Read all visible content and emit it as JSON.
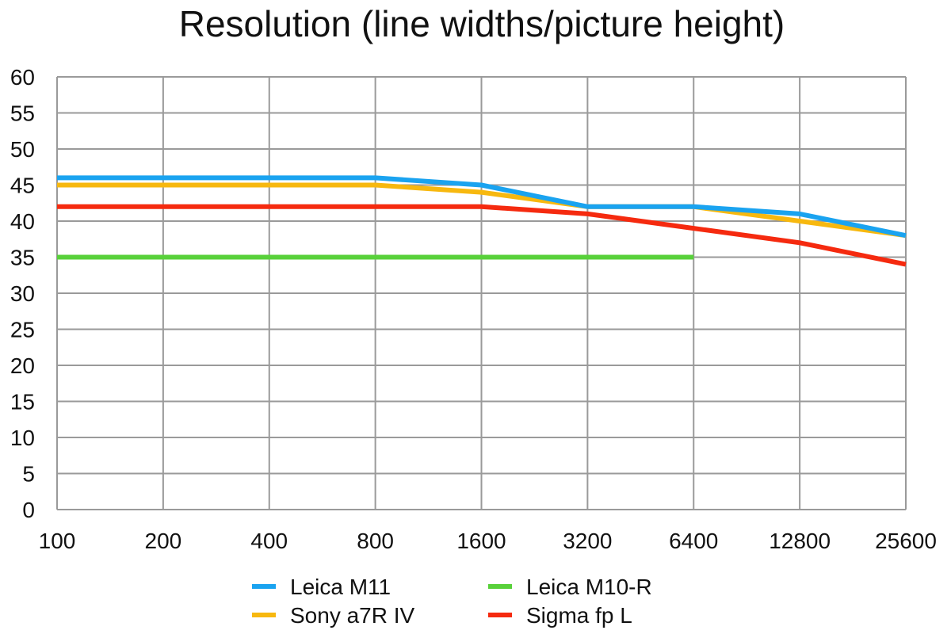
{
  "chart_data": {
    "type": "line",
    "title": "Resolution (line widths/picture height)",
    "xlabel": "",
    "ylabel": "",
    "x": [
      "100",
      "200",
      "400",
      "800",
      "1600",
      "3200",
      "6400",
      "12800",
      "25600"
    ],
    "y_ticks": [
      "0",
      "5",
      "10",
      "15",
      "20",
      "25",
      "30",
      "35",
      "40",
      "45",
      "50",
      "55",
      "60"
    ],
    "ylim": [
      0,
      60
    ],
    "grid": true,
    "legend_position": "bottom",
    "series": [
      {
        "name": "Leica M11",
        "color": "#1aa3f0",
        "values": [
          46,
          46,
          46,
          46,
          45,
          42,
          42,
          41,
          38
        ]
      },
      {
        "name": "Sony a7R IV",
        "color": "#f7b80f",
        "values": [
          45,
          45,
          45,
          45,
          44,
          42,
          42,
          40,
          38
        ]
      },
      {
        "name": "Leica M10-R",
        "color": "#58d13a",
        "values": [
          35,
          35,
          35,
          35,
          35,
          35,
          35,
          null,
          null
        ]
      },
      {
        "name": "Sigma fp L",
        "color": "#f52a0f",
        "values": [
          42,
          42,
          42,
          42,
          42,
          41,
          39,
          37,
          34
        ]
      }
    ]
  }
}
